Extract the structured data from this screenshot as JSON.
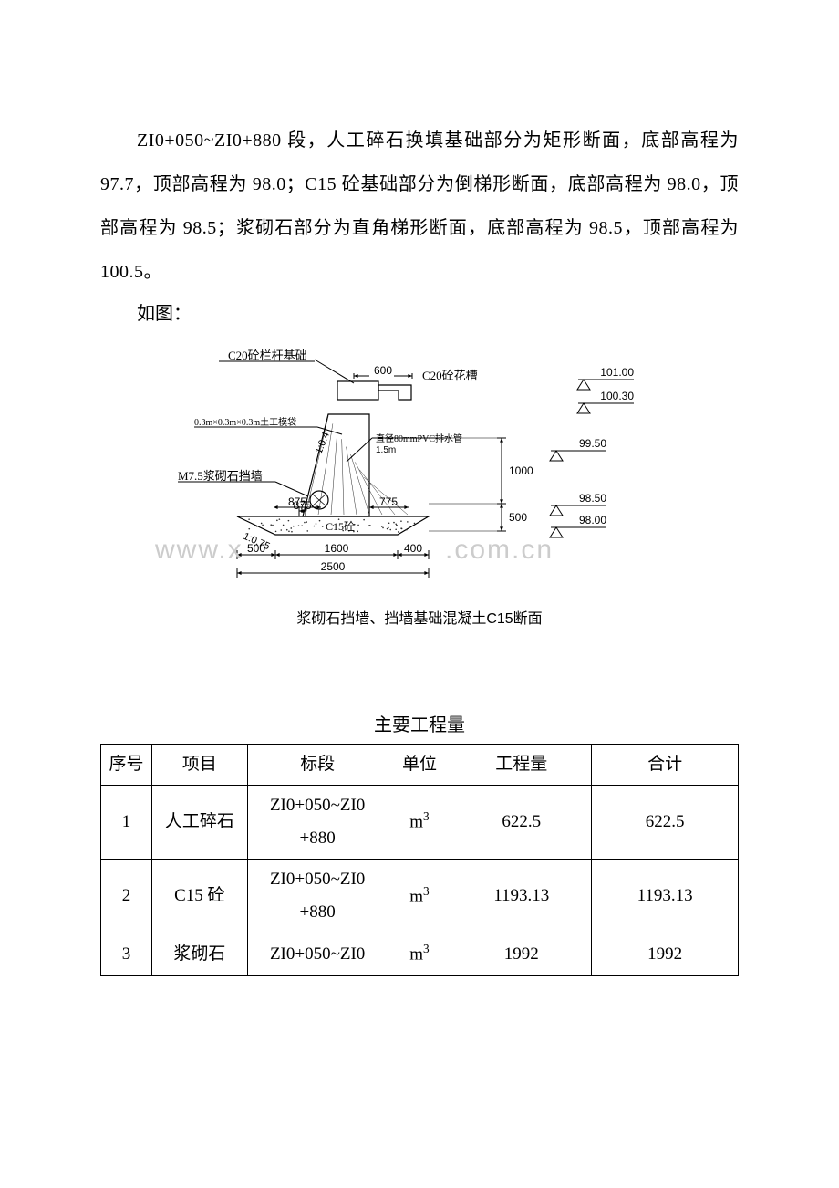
{
  "text": {
    "para1": "ZI0+050~ZI0+880 段，人工碎石换填基础部分为矩形断面，底部高程为 97.7，顶部高程为 98.0；C15 砼基础部分为倒梯形断面，底部高程为 98.0，顶部高程为 98.5；浆砌石部分为直角梯形断面，底部高程为 98.5，顶部高程为 100.5。",
    "para2": "如图：",
    "diagram_caption": "浆砌石挡墙、挡墙基础混凝土C15断面",
    "table_title": "主要工程量",
    "watermark_left": "www.x",
    "watermark_right": ".com.cn"
  },
  "diagram": {
    "labels": {
      "top_label": "C20砼栏杆基础",
      "dim_600": "600",
      "c20_flower": "C20砼花槽",
      "elev_101": "101.00",
      "elev_10030": "100.30",
      "cube_note": "0.3m×0.3m×0.3m土工模袋",
      "pvc_note": "直径80mmPVC排水管",
      "pvc_spacing": "1.5m",
      "elev_9950": "99.50",
      "m75": "M7.5浆砌石挡墙",
      "slope": "1:0.4",
      "slope2": "1:0.75",
      "dim_875": "875",
      "dim_775": "775",
      "dim_1000": "1000",
      "elev_9850": "98.50",
      "dim_500a": "500",
      "elev_9800": "98.00",
      "c15": "C15砼",
      "dim_500b": "500",
      "dim_1600": "1600",
      "dim_400": "400",
      "dim_2500": "2500"
    },
    "colors": {
      "line": "#000000",
      "hatch": "#2b2b2b",
      "bg": "#ffffff"
    },
    "fonts": {
      "label_cn": 13,
      "label_small": 10,
      "dim": 12
    }
  },
  "table": {
    "columns": [
      "序号",
      "项目",
      "标段",
      "单位",
      "工程量",
      "合计"
    ],
    "col_widths_pct": [
      8,
      15,
      22,
      10,
      22,
      23
    ],
    "unit_html": "m<span class=\"sup\">3</span>",
    "rows": [
      {
        "no": "1",
        "item": "人工碎石",
        "section": "ZI0+050~ZI0+880",
        "qty": "622.5",
        "total": "622.5",
        "twoLine": true
      },
      {
        "no": "2",
        "item": "C15 砼",
        "section": "ZI0+050~ZI0+880",
        "qty": "1193.13",
        "total": "1193.13",
        "twoLine": true
      },
      {
        "no": "3",
        "item": "浆砌石",
        "section": "ZI0+050~ZI0",
        "qty": "1992",
        "total": "1992",
        "twoLine": false
      }
    ]
  }
}
